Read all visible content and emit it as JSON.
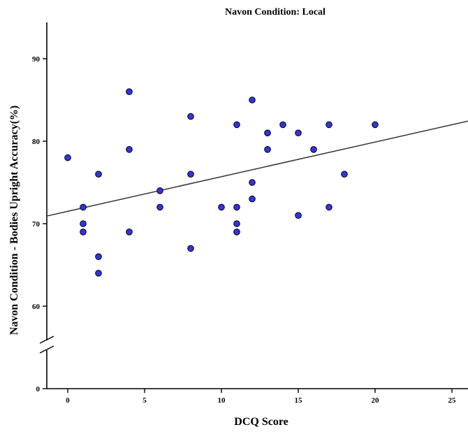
{
  "chart_data": {
    "type": "scatter",
    "title": "Navon Condition: Local",
    "xlabel": "DCQ Score",
    "ylabel": "Navon Condition - Bodies Upright Accuracy(%)",
    "xlim": [
      -1.5,
      26
    ],
    "ylim": [
      0,
      94
    ],
    "y_axis_break": [
      60,
      0
    ],
    "x_ticks": [
      0,
      5,
      10,
      15,
      20,
      25
    ],
    "y_ticks": [
      90,
      80,
      70,
      60,
      0
    ],
    "grid": false,
    "legend": "none",
    "point_color": "#3333e6",
    "points": [
      {
        "x": 0,
        "y": 78
      },
      {
        "x": 1,
        "y": 72
      },
      {
        "x": 1,
        "y": 70
      },
      {
        "x": 1,
        "y": 69
      },
      {
        "x": 2,
        "y": 76
      },
      {
        "x": 2,
        "y": 66
      },
      {
        "x": 2,
        "y": 64
      },
      {
        "x": 4,
        "y": 86
      },
      {
        "x": 4,
        "y": 79
      },
      {
        "x": 4,
        "y": 69
      },
      {
        "x": 6,
        "y": 74
      },
      {
        "x": 6,
        "y": 72
      },
      {
        "x": 8,
        "y": 83
      },
      {
        "x": 8,
        "y": 76
      },
      {
        "x": 8,
        "y": 67
      },
      {
        "x": 10,
        "y": 72
      },
      {
        "x": 11,
        "y": 82
      },
      {
        "x": 11,
        "y": 72
      },
      {
        "x": 11,
        "y": 70
      },
      {
        "x": 11,
        "y": 69
      },
      {
        "x": 12,
        "y": 85
      },
      {
        "x": 12,
        "y": 75
      },
      {
        "x": 12,
        "y": 73
      },
      {
        "x": 13,
        "y": 81
      },
      {
        "x": 13,
        "y": 79
      },
      {
        "x": 14,
        "y": 82
      },
      {
        "x": 15,
        "y": 81
      },
      {
        "x": 15,
        "y": 71
      },
      {
        "x": 16,
        "y": 79
      },
      {
        "x": 17,
        "y": 82
      },
      {
        "x": 17,
        "y": 72
      },
      {
        "x": 18,
        "y": 76
      },
      {
        "x": 20,
        "y": 82
      }
    ],
    "fit_line": {
      "intercept": 71.5,
      "slope": 0.42
    }
  }
}
